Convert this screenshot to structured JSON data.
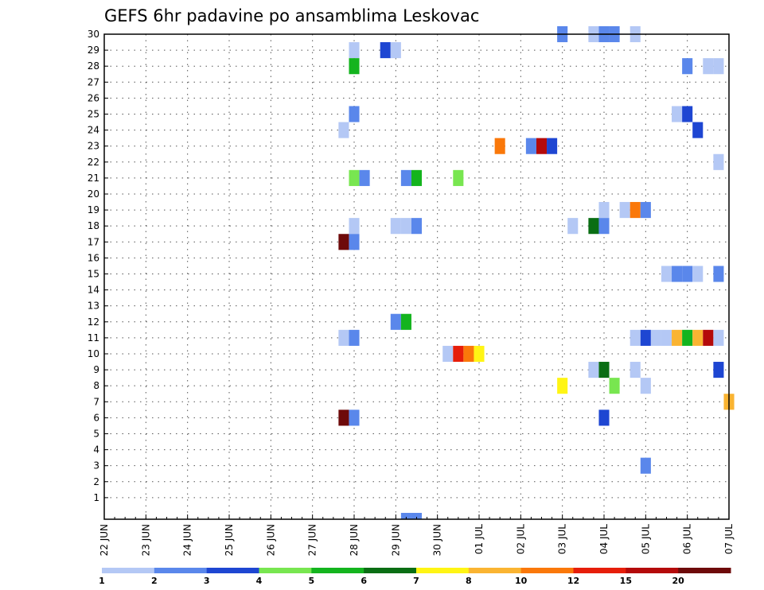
{
  "chart_data": {
    "type": "heatmap",
    "title": "GEFS 6hr padavine po ansamblima Leskovac",
    "xlabel": "",
    "ylabel": "",
    "x_tick_labels": [
      "22 JUN",
      "23 JUN",
      "24 JUN",
      "25 JUN",
      "26 JUN",
      "27 JUN",
      "28 JUN",
      "29 JUN",
      "30 JUN",
      "01 JUL",
      "02 JUL",
      "03 JUL",
      "04 JUL",
      "05 JUL",
      "06 JUL",
      "07 JUL"
    ],
    "y_tick_labels": [
      "1",
      "2",
      "3",
      "4",
      "5",
      "6",
      "7",
      "8",
      "9",
      "10",
      "11",
      "12",
      "13",
      "14",
      "15",
      "16",
      "17",
      "18",
      "19",
      "20",
      "21",
      "22",
      "23",
      "24",
      "25",
      "26",
      "27",
      "28",
      "29",
      "30"
    ],
    "x_range_steps": [
      0,
      60
    ],
    "y_range_members": [
      0,
      30
    ],
    "grid": true,
    "colorbar": {
      "placement": "bottom",
      "labels": [
        "1",
        "2",
        "3",
        "4",
        "5",
        "6",
        "7",
        "8",
        "10",
        "12",
        "15",
        "20"
      ],
      "colors": [
        "#b4c8f5",
        "#5a87eb",
        "#1e46d2",
        "#78e650",
        "#14b41e",
        "#0a6e14",
        "#fff514",
        "#fab432",
        "#fa780a",
        "#e61e0a",
        "#b40a0a",
        "#6e0a0a"
      ]
    },
    "cells": [
      {
        "member": 30,
        "step": 44,
        "level": 2
      },
      {
        "member": 30,
        "step": 47,
        "level": 1
      },
      {
        "member": 30,
        "step": 48,
        "level": 2
      },
      {
        "member": 30,
        "step": 49,
        "level": 2
      },
      {
        "member": 30,
        "step": 51,
        "level": 1
      },
      {
        "member": 29,
        "step": 24,
        "level": 1
      },
      {
        "member": 29,
        "step": 27,
        "level": 3
      },
      {
        "member": 29,
        "step": 28,
        "level": 1
      },
      {
        "member": 28,
        "step": 24,
        "level": 5
      },
      {
        "member": 28,
        "step": 56,
        "level": 2
      },
      {
        "member": 28,
        "step": 58,
        "level": 1
      },
      {
        "member": 28,
        "step": 59,
        "level": 1
      },
      {
        "member": 25,
        "step": 24,
        "level": 2
      },
      {
        "member": 25,
        "step": 55,
        "level": 1
      },
      {
        "member": 25,
        "step": 56,
        "level": 3
      },
      {
        "member": 24,
        "step": 23,
        "level": 1
      },
      {
        "member": 24,
        "step": 57,
        "level": 3
      },
      {
        "member": 23,
        "step": 38,
        "level": 9
      },
      {
        "member": 23,
        "step": 41,
        "level": 2
      },
      {
        "member": 23,
        "step": 42,
        "level": 11
      },
      {
        "member": 23,
        "step": 43,
        "level": 3
      },
      {
        "member": 22,
        "step": 59,
        "level": 1
      },
      {
        "member": 21,
        "step": 24,
        "level": 4
      },
      {
        "member": 21,
        "step": 25,
        "level": 2
      },
      {
        "member": 21,
        "step": 29,
        "level": 2
      },
      {
        "member": 21,
        "step": 30,
        "level": 5
      },
      {
        "member": 21,
        "step": 34,
        "level": 4
      },
      {
        "member": 19,
        "step": 48,
        "level": 1
      },
      {
        "member": 19,
        "step": 50,
        "level": 1
      },
      {
        "member": 19,
        "step": 51,
        "level": 9
      },
      {
        "member": 19,
        "step": 52,
        "level": 2
      },
      {
        "member": 18,
        "step": 24,
        "level": 1
      },
      {
        "member": 18,
        "step": 28,
        "level": 1
      },
      {
        "member": 18,
        "step": 29,
        "level": 1
      },
      {
        "member": 18,
        "step": 30,
        "level": 2
      },
      {
        "member": 18,
        "step": 45,
        "level": 1
      },
      {
        "member": 18,
        "step": 47,
        "level": 6
      },
      {
        "member": 18,
        "step": 48,
        "level": 2
      },
      {
        "member": 17,
        "step": 23,
        "level": 12
      },
      {
        "member": 17,
        "step": 24,
        "level": 2
      },
      {
        "member": 15,
        "step": 54,
        "level": 1
      },
      {
        "member": 15,
        "step": 55,
        "level": 2
      },
      {
        "member": 15,
        "step": 56,
        "level": 2
      },
      {
        "member": 15,
        "step": 57,
        "level": 1
      },
      {
        "member": 15,
        "step": 59,
        "level": 2
      },
      {
        "member": 12,
        "step": 28,
        "level": 2
      },
      {
        "member": 12,
        "step": 29,
        "level": 5
      },
      {
        "member": 11,
        "step": 23,
        "level": 1
      },
      {
        "member": 11,
        "step": 24,
        "level": 2
      },
      {
        "member": 11,
        "step": 51,
        "level": 1
      },
      {
        "member": 11,
        "step": 52,
        "level": 3
      },
      {
        "member": 11,
        "step": 53,
        "level": 1
      },
      {
        "member": 11,
        "step": 54,
        "level": 1
      },
      {
        "member": 11,
        "step": 55,
        "level": 8
      },
      {
        "member": 11,
        "step": 56,
        "level": 5
      },
      {
        "member": 11,
        "step": 57,
        "level": 8
      },
      {
        "member": 11,
        "step": 58,
        "level": 11
      },
      {
        "member": 11,
        "step": 59,
        "level": 1
      },
      {
        "member": 10,
        "step": 33,
        "level": 1
      },
      {
        "member": 10,
        "step": 34,
        "level": 10
      },
      {
        "member": 10,
        "step": 35,
        "level": 9
      },
      {
        "member": 10,
        "step": 36,
        "level": 7
      },
      {
        "member": 9,
        "step": 47,
        "level": 1
      },
      {
        "member": 9,
        "step": 48,
        "level": 6
      },
      {
        "member": 9,
        "step": 51,
        "level": 1
      },
      {
        "member": 9,
        "step": 59,
        "level": 3
      },
      {
        "member": 8,
        "step": 44,
        "level": 7
      },
      {
        "member": 8,
        "step": 49,
        "level": 4
      },
      {
        "member": 8,
        "step": 52,
        "level": 1
      },
      {
        "member": 7,
        "step": 60,
        "level": 8
      },
      {
        "member": 6,
        "step": 23,
        "level": 12
      },
      {
        "member": 6,
        "step": 24,
        "level": 2
      },
      {
        "member": 6,
        "step": 48,
        "level": 3
      },
      {
        "member": 3,
        "step": 52,
        "level": 2
      },
      {
        "member": 0,
        "step": 29,
        "level": 2
      },
      {
        "member": 0,
        "step": 30,
        "level": 2
      }
    ]
  }
}
